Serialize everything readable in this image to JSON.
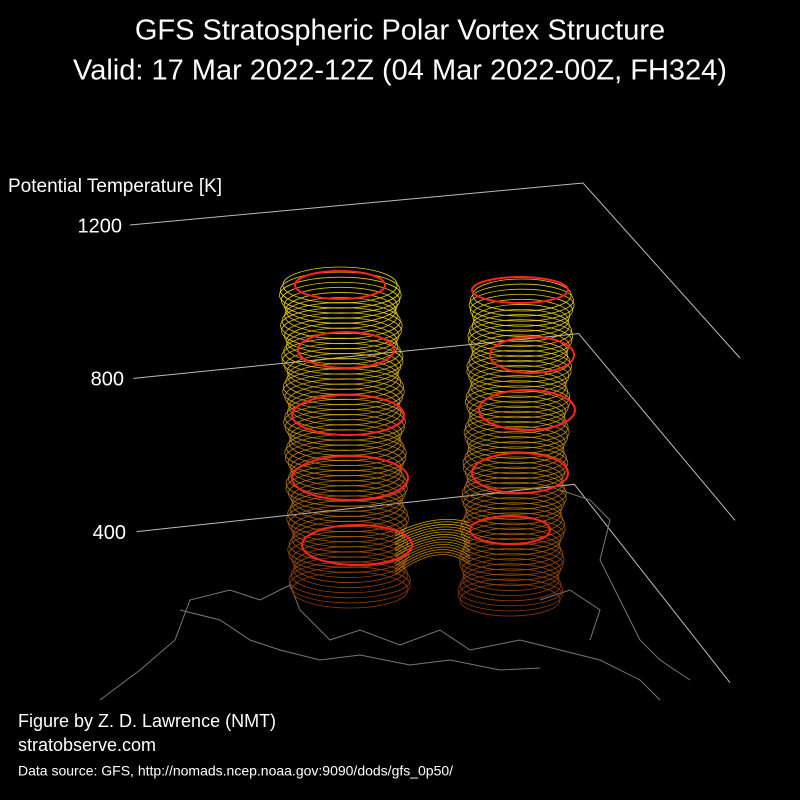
{
  "chart_data": {
    "type": "vortex3d",
    "title": "GFS Stratospheric Polar Vortex Structure",
    "subtitle": "Valid: 17 Mar 2022-12Z  (04 Mar 2022-00Z, FH324)",
    "zlabel": "Potential Temperature [K]",
    "zlim": [
      0,
      1200
    ],
    "zticks": [
      400,
      800,
      1200
    ],
    "credit": "Figure by Z. D. Lawrence (NMT)",
    "website": "stratobserve.com",
    "source": "Data source: GFS, http://nomads.ncep.noaa.gov:9090/dods/gfs_0p50/"
  }
}
